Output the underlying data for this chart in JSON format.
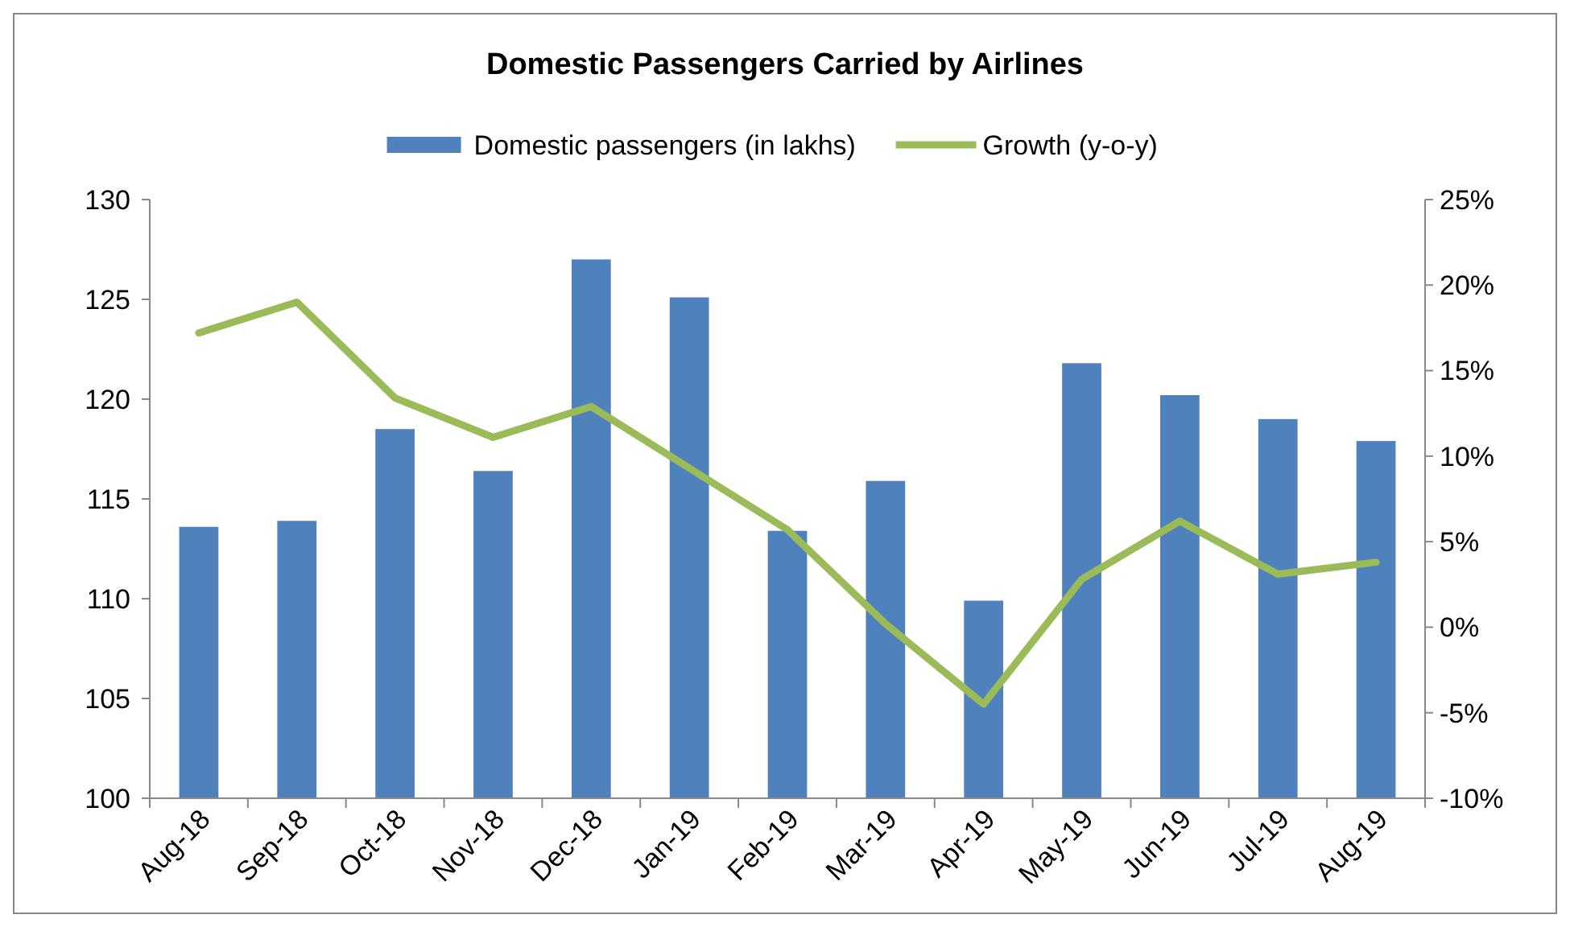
{
  "chart_data": {
    "type": "bar",
    "title": "Domestic Passengers Carried by Airlines",
    "categories": [
      "Aug-18",
      "Sep-18",
      "Oct-18",
      "Nov-18",
      "Dec-18",
      "Jan-19",
      "Feb-19",
      "Mar-19",
      "Apr-19",
      "May-19",
      "Jun-19",
      "Jul-19",
      "Aug-19"
    ],
    "series": [
      {
        "name": "Domestic passengers (in lakhs)",
        "color": "#4f81bd",
        "values": [
          113.6,
          113.9,
          118.5,
          116.4,
          127.0,
          125.1,
          113.4,
          115.9,
          109.9,
          121.8,
          120.2,
          119.0,
          117.9
        ]
      },
      {
        "name": "Growth (y-o-y)",
        "type": "line",
        "axis": "y2",
        "color": "#9bbb59",
        "values": [
          17.2,
          19.0,
          13.4,
          11.1,
          12.9,
          9.3,
          5.7,
          0.2,
          -4.5,
          2.8,
          6.2,
          3.1,
          3.8
        ]
      }
    ],
    "ylim": [
      100,
      130
    ],
    "yticks": [
      100,
      105,
      110,
      115,
      120,
      125,
      130
    ],
    "y2lim": [
      -10,
      25
    ],
    "y2ticks": [
      {
        "value": -10,
        "label": "-10%"
      },
      {
        "value": -5,
        "label": "-5%"
      },
      {
        "value": 0,
        "label": "0%"
      },
      {
        "value": 5,
        "label": "5%"
      },
      {
        "value": 10,
        "label": "10%"
      },
      {
        "value": 15,
        "label": "15%"
      },
      {
        "value": 20,
        "label": "20%"
      },
      {
        "value": 25,
        "label": "25%"
      }
    ],
    "legend": "top",
    "marker": "none",
    "line_style": "solid"
  }
}
